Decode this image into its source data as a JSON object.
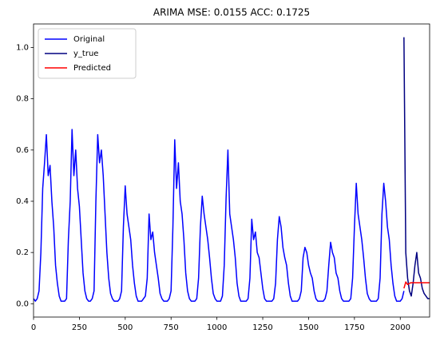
{
  "chart_data": {
    "type": "line",
    "title": "ARIMA MSE: 0.0155 ACC: 0.1725",
    "xlim": [
      0,
      2160
    ],
    "xticks": [
      0,
      250,
      500,
      750,
      1000,
      1250,
      1500,
      1750,
      2000
    ],
    "ylim": [
      -0.052,
      1.092
    ],
    "yticks": [
      {
        "value": 0,
        "label": "0.0"
      },
      0.2,
      0.4,
      0.6,
      0.8,
      {
        "value": 1,
        "label": "1.0"
      }
    ],
    "legend": "upper left",
    "series": [
      {
        "name": "Original",
        "color": "#0000ff",
        "x": [
          0,
          10,
          20,
          30,
          40,
          50,
          60,
          70,
          80,
          90,
          100,
          110,
          120,
          130,
          140,
          150,
          160,
          170,
          180,
          190,
          200,
          210,
          220,
          230,
          240,
          250,
          260,
          270,
          280,
          290,
          300,
          310,
          320,
          330,
          340,
          350,
          360,
          370,
          380,
          390,
          400,
          410,
          420,
          430,
          440,
          450,
          460,
          470,
          480,
          490,
          500,
          510,
          520,
          530,
          540,
          550,
          560,
          570,
          580,
          590,
          600,
          610,
          620,
          630,
          640,
          650,
          660,
          670,
          680,
          690,
          700,
          710,
          720,
          730,
          740,
          750,
          760,
          770,
          780,
          790,
          800,
          810,
          820,
          830,
          840,
          850,
          860,
          870,
          880,
          890,
          900,
          910,
          920,
          930,
          940,
          950,
          960,
          970,
          980,
          990,
          1000,
          1010,
          1020,
          1030,
          1040,
          1050,
          1060,
          1070,
          1080,
          1090,
          1100,
          1110,
          1120,
          1130,
          1140,
          1150,
          1160,
          1170,
          1180,
          1190,
          1200,
          1210,
          1220,
          1230,
          1240,
          1250,
          1260,
          1270,
          1280,
          1290,
          1300,
          1310,
          1320,
          1330,
          1340,
          1350,
          1360,
          1370,
          1380,
          1390,
          1400,
          1410,
          1420,
          1430,
          1440,
          1450,
          1460,
          1470,
          1480,
          1490,
          1500,
          1510,
          1520,
          1530,
          1540,
          1550,
          1560,
          1570,
          1580,
          1590,
          1600,
          1610,
          1620,
          1630,
          1640,
          1650,
          1660,
          1670,
          1680,
          1690,
          1700,
          1710,
          1720,
          1730,
          1740,
          1750,
          1760,
          1770,
          1780,
          1790,
          1800,
          1810,
          1820,
          1830,
          1840,
          1850,
          1860,
          1870,
          1880,
          1890,
          1900,
          1910,
          1920,
          1930,
          1940,
          1950,
          1960,
          1970,
          1980,
          1990,
          2000,
          2010,
          2020
        ],
        "values": [
          0.02,
          0.01,
          0.02,
          0.05,
          0.2,
          0.45,
          0.55,
          0.66,
          0.5,
          0.54,
          0.4,
          0.3,
          0.15,
          0.08,
          0.03,
          0.01,
          0.01,
          0.01,
          0.02,
          0.25,
          0.4,
          0.68,
          0.5,
          0.6,
          0.45,
          0.38,
          0.25,
          0.12,
          0.05,
          0.02,
          0.01,
          0.01,
          0.02,
          0.05,
          0.4,
          0.66,
          0.55,
          0.6,
          0.5,
          0.35,
          0.2,
          0.1,
          0.04,
          0.02,
          0.01,
          0.01,
          0.01,
          0.02,
          0.05,
          0.3,
          0.46,
          0.35,
          0.3,
          0.25,
          0.15,
          0.08,
          0.03,
          0.01,
          0.01,
          0.01,
          0.02,
          0.03,
          0.1,
          0.35,
          0.25,
          0.28,
          0.2,
          0.15,
          0.1,
          0.04,
          0.02,
          0.01,
          0.01,
          0.01,
          0.02,
          0.05,
          0.3,
          0.64,
          0.45,
          0.55,
          0.4,
          0.35,
          0.25,
          0.12,
          0.05,
          0.02,
          0.01,
          0.01,
          0.01,
          0.02,
          0.1,
          0.3,
          0.42,
          0.35,
          0.3,
          0.25,
          0.18,
          0.1,
          0.04,
          0.02,
          0.01,
          0.01,
          0.01,
          0.03,
          0.15,
          0.41,
          0.6,
          0.35,
          0.3,
          0.25,
          0.18,
          0.08,
          0.03,
          0.01,
          0.01,
          0.01,
          0.01,
          0.02,
          0.1,
          0.33,
          0.25,
          0.28,
          0.2,
          0.18,
          0.12,
          0.06,
          0.02,
          0.01,
          0.01,
          0.01,
          0.01,
          0.02,
          0.08,
          0.25,
          0.34,
          0.3,
          0.22,
          0.18,
          0.15,
          0.08,
          0.03,
          0.01,
          0.01,
          0.01,
          0.01,
          0.02,
          0.05,
          0.18,
          0.22,
          0.2,
          0.15,
          0.12,
          0.1,
          0.05,
          0.02,
          0.01,
          0.01,
          0.01,
          0.01,
          0.02,
          0.05,
          0.15,
          0.24,
          0.2,
          0.18,
          0.12,
          0.1,
          0.05,
          0.02,
          0.01,
          0.01,
          0.01,
          0.01,
          0.02,
          0.1,
          0.3,
          0.47,
          0.35,
          0.3,
          0.25,
          0.18,
          0.1,
          0.04,
          0.02,
          0.01,
          0.01,
          0.01,
          0.01,
          0.02,
          0.1,
          0.35,
          0.47,
          0.4,
          0.3,
          0.25,
          0.15,
          0.08,
          0.03,
          0.01,
          0.01,
          0.01,
          0.02,
          0.05
        ]
      },
      {
        "name": "y_true",
        "color": "#000080",
        "x": [
          2020,
          2030,
          2040,
          2050,
          2060,
          2070,
          2080,
          2090,
          2100,
          2110,
          2120,
          2130,
          2140,
          2150,
          2160
        ],
        "values": [
          1.04,
          0.2,
          0.1,
          0.05,
          0.03,
          0.08,
          0.15,
          0.2,
          0.12,
          0.1,
          0.06,
          0.04,
          0.03,
          0.02,
          0.02
        ]
      },
      {
        "name": "Predicted",
        "color": "#ff0000",
        "x": [
          2020,
          2030,
          2040,
          2050,
          2060,
          2070,
          2080,
          2090,
          2100,
          2110,
          2120,
          2130,
          2140,
          2150,
          2160
        ],
        "values": [
          0.06,
          0.085,
          0.075,
          0.08,
          0.082,
          0.082,
          0.082,
          0.082,
          0.082,
          0.082,
          0.082,
          0.082,
          0.082,
          0.082,
          0.082
        ]
      }
    ]
  }
}
